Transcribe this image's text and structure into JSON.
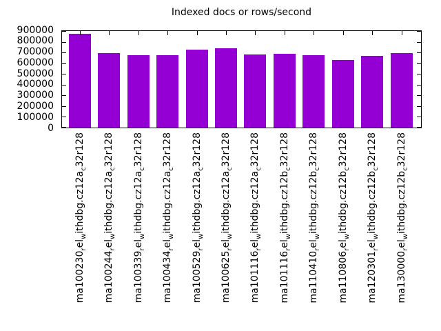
{
  "chart_data": {
    "type": "bar",
    "title": "Indexed docs or rows/second",
    "xlabel": "",
    "ylabel": "",
    "categories": [
      "ma100230_rel_withdbg.cz12a_c32r128",
      "ma100244_rel_withdbg.cz12a_c32r128",
      "ma100339_rel_withdbg.cz12a_c32r128",
      "ma100434_rel_withdbg.cz12a_c32r128",
      "ma100529_rel_withdbg.cz12a_c32r128",
      "ma100625_rel_withdbg.cz12a_c32r128",
      "ma101116_rel_withdbg.cz12a_c32r128",
      "ma101116_rel_withdbg.cz12b_c32r128",
      "ma110410_rel_withdbg.cz12b_c32r128",
      "ma110806_rel_withdbg.cz12b_c32r128",
      "ma120301_rel_withdbg.cz12b_c32r128",
      "ma130000_rel_withdbg.cz12b_c32r128"
    ],
    "values": [
      875000,
      695000,
      675000,
      677000,
      725000,
      737000,
      681000,
      685000,
      675000,
      630000,
      666000,
      695000
    ],
    "yticks": [
      0,
      100000,
      200000,
      300000,
      400000,
      500000,
      600000,
      700000,
      800000,
      900000
    ],
    "ylim": [
      0,
      900000
    ],
    "grid": false,
    "legend": "none",
    "bar_color": "#9400d3",
    "frame_color": "#000000",
    "enhanced_subscripts": true
  }
}
